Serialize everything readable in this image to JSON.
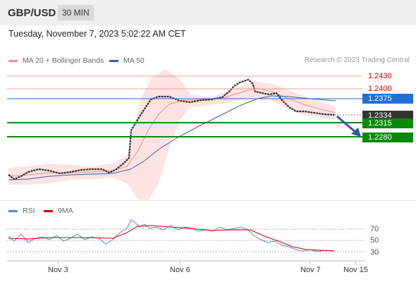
{
  "header": {
    "symbol": "GBP/USD",
    "timeframe": "30 MIN",
    "datetime": "Tuesday, November 7, 2023 5:02:22 AM CET"
  },
  "legend": {
    "ma20": "MA 20 + Bollinger Bands",
    "ma50": "MA 50",
    "credit": "Research © 2023 Trading Central",
    "colors": {
      "ma20": "#f08c8c",
      "ma50": "#3a5fa0"
    }
  },
  "levels": [
    {
      "label": "1.2430",
      "kind": "resistance",
      "color": "#d40000"
    },
    {
      "label": "1.2400",
      "kind": "resistance",
      "color": "#d40000"
    },
    {
      "label": "1.2375",
      "kind": "pivot",
      "color": "#1f6fd6"
    },
    {
      "label": "1.2334",
      "kind": "last",
      "color": "#333333"
    },
    {
      "label": "1.2315",
      "kind": "support",
      "color": "#0a8a0a"
    },
    {
      "label": "1.2280",
      "kind": "support",
      "color": "#0a8a0a"
    }
  ],
  "rsi_panel": {
    "rsi": "RSI",
    "ma9": "9MA",
    "ticks": [
      "70",
      "50",
      "30"
    ],
    "colors": {
      "rsi": "#5f85d6",
      "ma9": "#d40000"
    }
  },
  "x_axis": {
    "labels": [
      "Nov 3",
      "Nov 6",
      "Nov 7",
      "Nov 15"
    ]
  }
}
